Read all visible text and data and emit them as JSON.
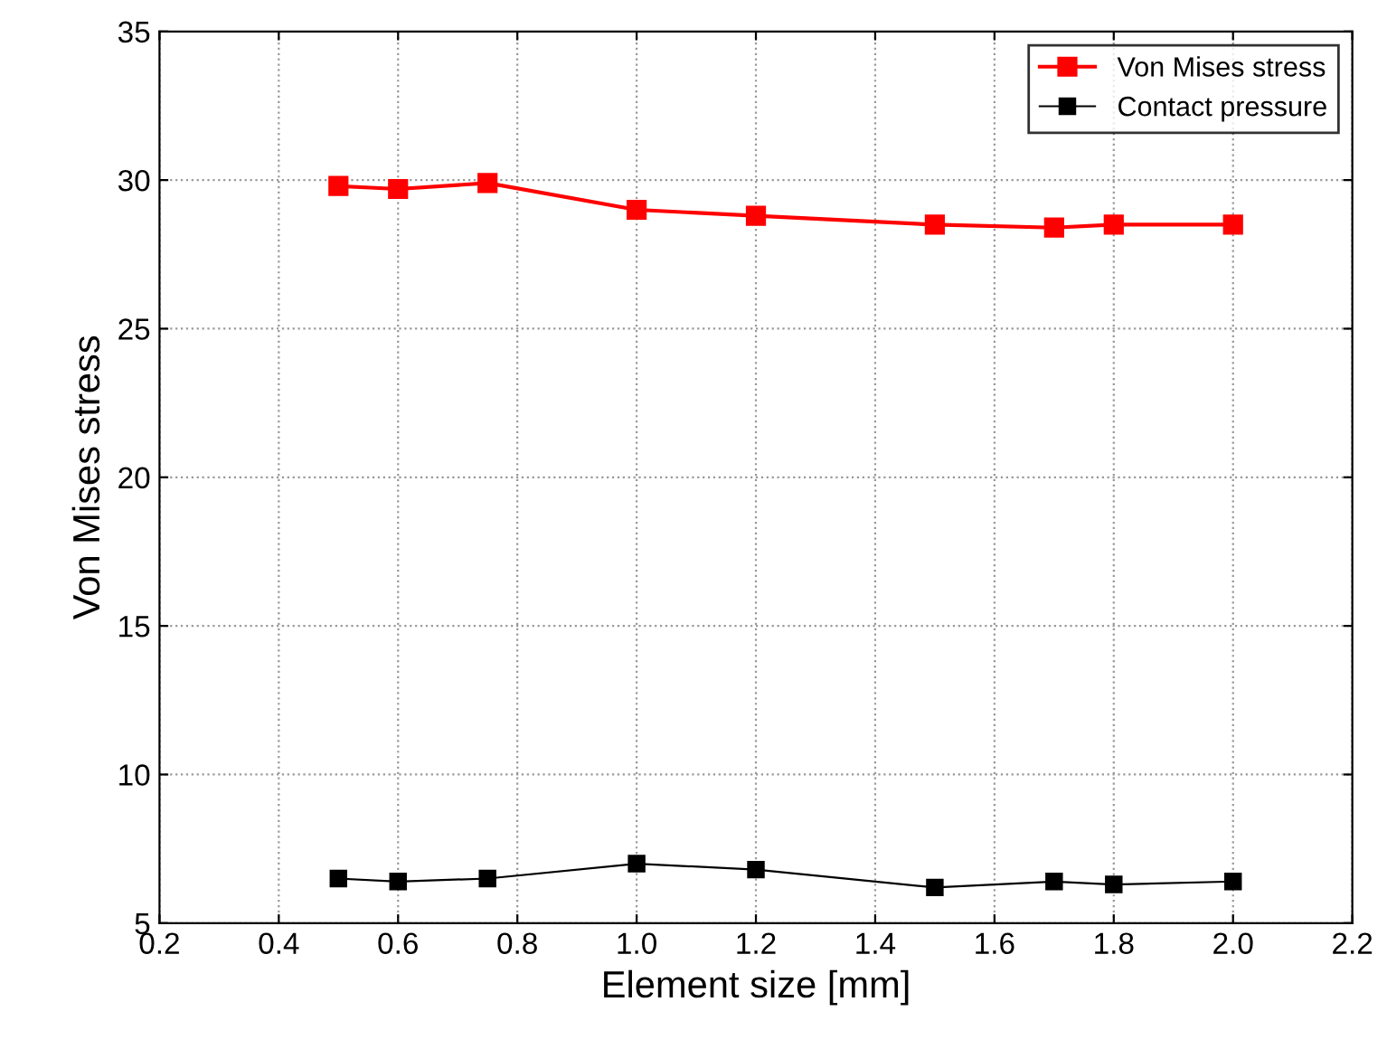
{
  "chart_data": {
    "type": "line",
    "xlabel": "Element size [mm]",
    "ylabel": "Von Mises stress",
    "xlim": [
      0.2,
      2.2
    ],
    "xticks": [
      0.2,
      0.4,
      0.6,
      0.8,
      {
        "value": 1,
        "label": "1.0"
      },
      1.2,
      1.4,
      1.6,
      1.8,
      {
        "value": 2,
        "label": "2.0"
      },
      2.2
    ],
    "ylim": [
      5,
      35
    ],
    "yticks": [
      5,
      10,
      15,
      20,
      25,
      30,
      35
    ],
    "x": [
      0.5,
      0.6,
      0.75,
      1.0,
      1.2,
      1.5,
      1.7,
      1.8,
      2.0
    ],
    "series": [
      {
        "name": "Von Mises stress",
        "color": "#ff0000",
        "values": [
          29.8,
          29.7,
          29.9,
          29.0,
          28.8,
          28.5,
          28.4,
          28.5,
          28.5
        ]
      },
      {
        "name": "Contact pressure",
        "color": "#000000",
        "values": [
          6.5,
          6.4,
          6.5,
          7.0,
          6.8,
          6.2,
          6.4,
          6.3,
          6.4
        ]
      }
    ],
    "grid": true,
    "legend": "top right",
    "marker": "square",
    "line_style": "solid"
  }
}
